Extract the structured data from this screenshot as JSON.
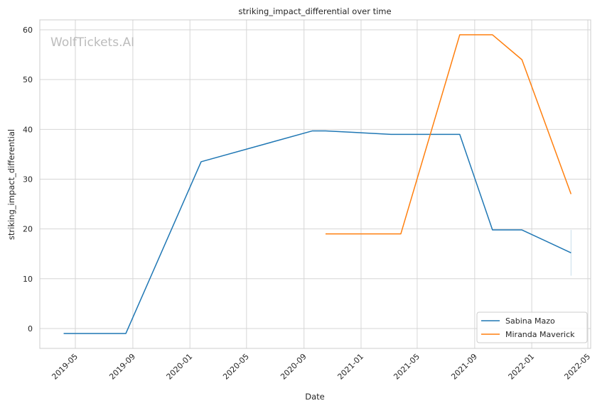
{
  "chart_data": {
    "type": "line",
    "title": "striking_impact_differential over time",
    "xlabel": "Date",
    "ylabel": "striking_impact_differential",
    "watermark": "WolfTickets.AI",
    "x_ticks": [
      "2019-05",
      "2019-09",
      "2020-01",
      "2020-05",
      "2020-09",
      "2021-01",
      "2021-05",
      "2021-09",
      "2022-01",
      "2022-05"
    ],
    "y_ticks": [
      0,
      10,
      20,
      30,
      40,
      50,
      60
    ],
    "xlim": [
      "2019-02-14",
      "2022-05-07"
    ],
    "ylim": [
      -4,
      62
    ],
    "grid": true,
    "legend_position": "bottom-right",
    "series": [
      {
        "name": "Sabina Mazo",
        "color": "#1f77b4",
        "points": [
          [
            "2019-04-06",
            -1
          ],
          [
            "2019-08-17",
            -1
          ],
          [
            "2020-01-25",
            33.5
          ],
          [
            "2020-09-19",
            39.7
          ],
          [
            "2020-10-17",
            39.7
          ],
          [
            "2021-03-06",
            39
          ],
          [
            "2021-07-31",
            39
          ],
          [
            "2021-10-09",
            19.8
          ],
          [
            "2021-12-11",
            19.8
          ],
          [
            "2022-03-26",
            15.2
          ]
        ]
      },
      {
        "name": "Miranda Maverick",
        "color": "#ff7f0e",
        "points": [
          [
            "2020-10-17",
            19
          ],
          [
            "2021-03-27",
            19
          ],
          [
            "2021-07-31",
            59
          ],
          [
            "2021-10-09",
            59
          ],
          [
            "2021-12-11",
            54
          ],
          [
            "2022-03-26",
            27
          ]
        ]
      }
    ],
    "error_bar": {
      "date": "2022-03-26",
      "low": 10.6,
      "high": 19.8,
      "color": "#1f77b4"
    }
  }
}
